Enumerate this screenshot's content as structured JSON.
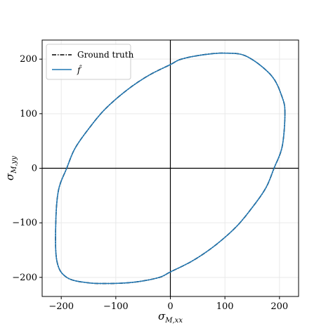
{
  "chart_data": {
    "type": "line",
    "title": "",
    "xlabel": {
      "base": "σ",
      "sub": "M,xx"
    },
    "ylabel": {
      "base": "σ",
      "sub": "M,yy"
    },
    "xlim": [
      -235,
      235
    ],
    "ylim": [
      -235,
      235
    ],
    "xticks": [
      -200,
      -100,
      0,
      100,
      200
    ],
    "yticks": [
      -200,
      -100,
      0,
      100,
      200
    ],
    "xtick_labels": [
      "−200",
      "−100",
      "0",
      "100",
      "200"
    ],
    "ytick_labels": [
      "−200",
      "−100",
      "0",
      "100",
      "200"
    ],
    "grid": true,
    "reference_lines": {
      "x": 0,
      "y": 0
    },
    "legend_position": "top-left",
    "series": [
      {
        "name": "Ground truth",
        "style": "dashdot",
        "color": "#000000",
        "points": [
          [
            210,
            100
          ],
          [
            205,
            130
          ],
          [
            185,
            170
          ],
          [
            140,
            205
          ],
          [
            100,
            211
          ],
          [
            60,
            208
          ],
          [
            20,
            200
          ],
          [
            0,
            190
          ],
          [
            -40,
            170
          ],
          [
            -80,
            143
          ],
          [
            -120,
            108
          ],
          [
            -150,
            72
          ],
          [
            -175,
            36
          ],
          [
            -190,
            0
          ],
          [
            -205,
            -40
          ],
          [
            -210,
            -100
          ],
          [
            -208,
            -170
          ],
          [
            -190,
            -200
          ],
          [
            -150,
            -210
          ],
          [
            -100,
            -211
          ],
          [
            -60,
            -208
          ],
          [
            -20,
            -200
          ],
          [
            0,
            -190
          ],
          [
            40,
            -170
          ],
          [
            80,
            -143
          ],
          [
            120,
            -108
          ],
          [
            150,
            -72
          ],
          [
            175,
            -36
          ],
          [
            190,
            0
          ],
          [
            205,
            40
          ],
          [
            210,
            100
          ]
        ]
      },
      {
        "name": "f̂",
        "style": "solid",
        "color": "#1f77b4",
        "points": [
          [
            210,
            100
          ],
          [
            205,
            130
          ],
          [
            185,
            170
          ],
          [
            140,
            205
          ],
          [
            100,
            211
          ],
          [
            60,
            208
          ],
          [
            20,
            200
          ],
          [
            0,
            190
          ],
          [
            -40,
            170
          ],
          [
            -80,
            143
          ],
          [
            -120,
            108
          ],
          [
            -150,
            72
          ],
          [
            -175,
            36
          ],
          [
            -190,
            0
          ],
          [
            -205,
            -40
          ],
          [
            -210,
            -100
          ],
          [
            -208,
            -170
          ],
          [
            -190,
            -200
          ],
          [
            -150,
            -210
          ],
          [
            -100,
            -211
          ],
          [
            -60,
            -208
          ],
          [
            -20,
            -200
          ],
          [
            0,
            -190
          ],
          [
            40,
            -170
          ],
          [
            80,
            -143
          ],
          [
            120,
            -108
          ],
          [
            150,
            -72
          ],
          [
            175,
            -36
          ],
          [
            190,
            0
          ],
          [
            205,
            40
          ],
          [
            210,
            100
          ]
        ]
      }
    ]
  }
}
